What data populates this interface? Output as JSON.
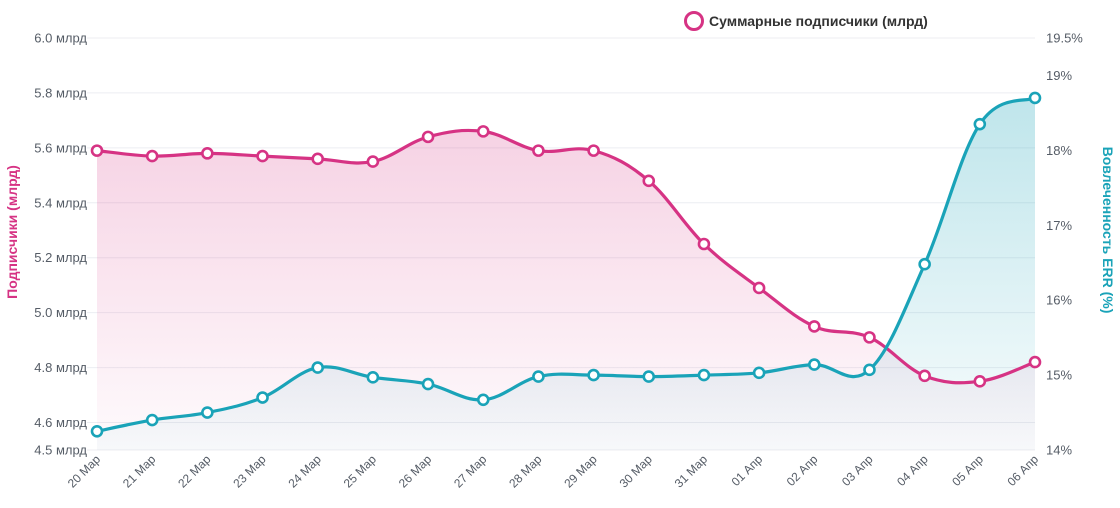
{
  "chart_data": {
    "type": "line",
    "categories": [
      "20 Мар",
      "21 Мар",
      "22 Мар",
      "23 Мар",
      "24 Мар",
      "25 Мар",
      "26 Мар",
      "27 Мар",
      "28 Мар",
      "29 Мар",
      "30 Мар",
      "31 Мар",
      "01 Апр",
      "02 Апр",
      "03 Апр",
      "04 Апр",
      "05 Апр",
      "06 Апр"
    ],
    "series": [
      {
        "name": "Суммарные подписчики (млрд)",
        "axis": "left",
        "color": "#d63384",
        "values": [
          5.59,
          5.57,
          5.58,
          5.57,
          5.56,
          5.55,
          5.64,
          5.66,
          5.59,
          5.59,
          5.48,
          5.25,
          5.09,
          4.95,
          4.91,
          4.77,
          4.75,
          4.82
        ]
      },
      {
        "name": "",
        "axis": "right",
        "color": "#1aa3b8",
        "values": [
          14.25,
          14.4,
          14.5,
          14.7,
          15.1,
          14.97,
          14.88,
          14.67,
          14.98,
          15.0,
          14.98,
          15.0,
          15.03,
          15.14,
          15.07,
          16.48,
          18.35,
          18.7
        ]
      }
    ],
    "y_left": {
      "label": "Подписчики (млрд)",
      "ticks": [
        "4.5 млрд",
        "4.6 млрд",
        "4.8 млрд",
        "5.0 млрд",
        "5.2 млрд",
        "5.4 млрд",
        "5.6 млрд",
        "5.8 млрд",
        "6.0 млрд"
      ],
      "tick_values": [
        4.5,
        4.6,
        4.8,
        5.0,
        5.2,
        5.4,
        5.6,
        5.8,
        6.0
      ],
      "range": [
        4.5,
        6.0
      ]
    },
    "y_right": {
      "label": "Вовлеченность ERR (%)",
      "ticks": [
        "14%",
        "15%",
        "16%",
        "17%",
        "18%",
        "19%",
        "19.5%"
      ],
      "tick_values": [
        14,
        15,
        16,
        17,
        18,
        19,
        19.5
      ],
      "range": [
        14,
        19.5
      ]
    },
    "legend": {
      "label": "Суммарные подписчики (млрд)",
      "position": "top-right"
    },
    "grid": true,
    "colors": {
      "subscribers": "#d63384",
      "engagement": "#1aa3b8",
      "grid": "#eceef2"
    }
  }
}
